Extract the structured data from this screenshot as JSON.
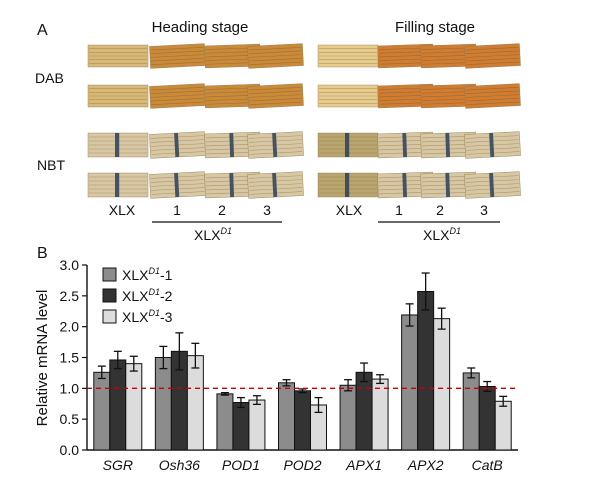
{
  "panel_a": {
    "letter": "A",
    "heading_stage": "Heading stage",
    "filling_stage": "Filling stage",
    "row_dab": "DAB",
    "row_nbt": "NBT",
    "xlx": "XLX",
    "lines": [
      "1",
      "2",
      "3"
    ],
    "group": "XLX",
    "group_sup": "D1",
    "colors": {
      "dab_control": "#d9b978",
      "dab_line_heading": "#c98a3a",
      "dab_line_filling": "#cf7d32",
      "nbt_leaf": "#d7c7a2",
      "nbt_stain": "#2b3f5a",
      "nbt_filling_leaf": "#b9a66e"
    }
  },
  "panel_b": {
    "letter": "B",
    "chart_data": {
      "type": "bar",
      "ylabel": "Relative mRNA level",
      "ylim": [
        0,
        3.0
      ],
      "yticks": [
        "0.0",
        "0.5",
        "1.0",
        "1.5",
        "2.0",
        "2.5",
        "3.0"
      ],
      "categories": [
        "SGR",
        "Osh36",
        "POD1",
        "POD2",
        "APX1",
        "APX2",
        "CatB"
      ],
      "series": [
        {
          "name": "XLX",
          "sup": "D1",
          "suffix": "-1",
          "color": "#8c8c8c",
          "values": [
            1.26,
            1.5,
            0.91,
            1.09,
            1.05,
            2.19,
            1.25
          ],
          "errors": [
            0.1,
            0.18,
            0.02,
            0.05,
            0.09,
            0.18,
            0.08
          ]
        },
        {
          "name": "XLX",
          "sup": "D1",
          "suffix": "-2",
          "color": "#333333",
          "values": [
            1.46,
            1.6,
            0.77,
            0.96,
            1.26,
            2.57,
            1.03
          ],
          "errors": [
            0.14,
            0.3,
            0.08,
            0.03,
            0.15,
            0.3,
            0.08
          ]
        },
        {
          "name": "XLX",
          "sup": "D1",
          "suffix": "-3",
          "color": "#dcdcdc",
          "values": [
            1.4,
            1.53,
            0.81,
            0.73,
            1.15,
            2.13,
            0.79
          ],
          "errors": [
            0.12,
            0.2,
            0.07,
            0.12,
            0.07,
            0.17,
            0.08
          ]
        }
      ],
      "reference_line": 1.0,
      "reference_color": "#cc0000",
      "legend_position": "top-left",
      "grid": false
    }
  }
}
